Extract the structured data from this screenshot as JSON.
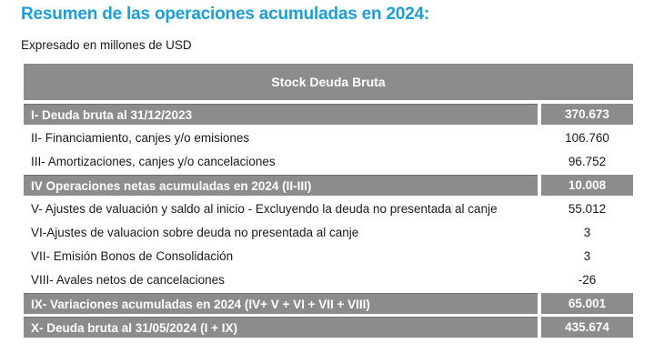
{
  "header": {
    "title": "Resumen de las operaciones acumuladas en 2024:",
    "subtitle": "Expresado en millones de USD"
  },
  "table": {
    "heading": "Stock Deuda Bruta",
    "rows": [
      {
        "label": "I- Deuda bruta al 31/12/2023",
        "value": "370.673",
        "highlight": true
      },
      {
        "label": "II- Financiamiento, canjes y/o emisiones",
        "value": "106.760",
        "highlight": false
      },
      {
        "label": "III- Amortizaciones, canjes y/o cancelaciones",
        "value": "96.752",
        "highlight": false
      },
      {
        "label": "IV Operaciones netas acumuladas en 2024 (II-III)",
        "value": "10.008",
        "highlight": true
      },
      {
        "label": "V- Ajustes de valuación y saldo al inicio - Excluyendo la deuda no presentada al canje",
        "value": "55.012",
        "highlight": false
      },
      {
        "label": "VI-Ajustes de valuacion sobre deuda no presentada al canje",
        "value": "3",
        "highlight": false
      },
      {
        "label": "VII- Emisión Bonos de Consolidación",
        "value": "3",
        "highlight": false
      },
      {
        "label": "VIII- Avales netos de cancelaciones",
        "value": "-26",
        "highlight": false
      },
      {
        "label": "IX- Variaciones acumuladas en 2024 (IV+ V + VI + VII + VIII)",
        "value": "65.001",
        "highlight": true
      },
      {
        "label": "X- Deuda bruta al 31/05/2024 (I + IX)",
        "value": "435.674",
        "highlight": true
      }
    ]
  }
}
